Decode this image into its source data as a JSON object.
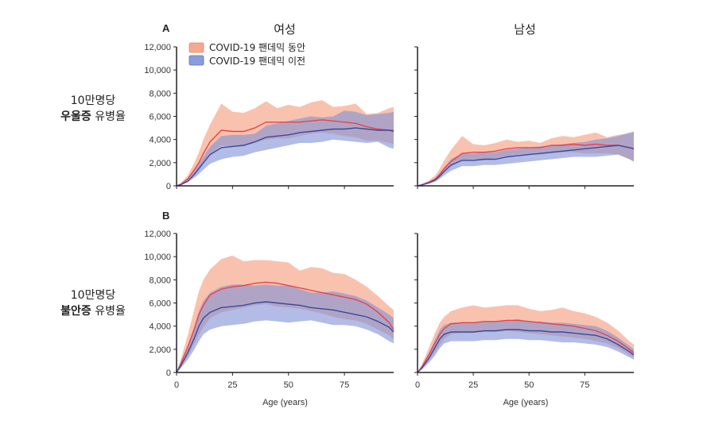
{
  "row_labels": [
    {
      "line1": "10만명당",
      "bold": "우울증",
      "rest": " 유병율"
    },
    {
      "line1": "10만명당",
      "bold": "불안증",
      "rest": " 유병율"
    }
  ],
  "columns": [
    "여성",
    "남성"
  ],
  "panel_letters": [
    "A",
    "B"
  ],
  "legend": [
    {
      "label": "COVID-19 팬데믹 동안",
      "color": "#f4a98f"
    },
    {
      "label": "COVID-19 팬데믹 이전",
      "color": "#8a9ddb"
    }
  ],
  "colors": {
    "during_band": "#f7a88c",
    "during_line": "#e8434a",
    "pre_band": "#7f8fd6",
    "pre_line": "#3b4a9a"
  },
  "chart_data": [
    {
      "type": "area",
      "title": "여성",
      "row": "A",
      "xlabel": "",
      "xlim": [
        0,
        97
      ],
      "ylim": [
        0,
        12000
      ],
      "yticks": [
        0,
        2000,
        4000,
        6000,
        8000,
        10000,
        12000
      ],
      "x": [
        0,
        2,
        5,
        8,
        10,
        12,
        15,
        20,
        25,
        30,
        35,
        40,
        45,
        50,
        55,
        60,
        65,
        70,
        75,
        80,
        85,
        90,
        95,
        97
      ],
      "series": [
        {
          "name": "COVID-19 팬데믹 동안",
          "values": [
            0,
            150,
            600,
            1400,
            2000,
            2800,
            3800,
            4800,
            4700,
            4700,
            5000,
            5500,
            5500,
            5500,
            5500,
            5600,
            5700,
            5600,
            5500,
            5400,
            5100,
            4900,
            4800,
            4800
          ],
          "lower": [
            0,
            100,
            400,
            900,
            1300,
            1900,
            2700,
            3500,
            3400,
            3400,
            3700,
            4000,
            4100,
            4100,
            4300,
            4500,
            4600,
            4500,
            4300,
            4200,
            3900,
            3900,
            3700,
            3600
          ],
          "upper": [
            0,
            250,
            900,
            2000,
            2900,
            4000,
            5300,
            7100,
            6400,
            6300,
            6700,
            7300,
            6700,
            7000,
            6800,
            7200,
            7400,
            6800,
            6900,
            7100,
            6200,
            6300,
            6700,
            6800
          ]
        },
        {
          "name": "COVID-19 팬데믹 이전",
          "values": [
            0,
            100,
            400,
            1000,
            1500,
            2000,
            2700,
            3300,
            3400,
            3500,
            3800,
            4200,
            4300,
            4400,
            4600,
            4700,
            4800,
            4900,
            4900,
            5000,
            4900,
            4800,
            4800,
            4700
          ],
          "lower": [
            0,
            80,
            300,
            700,
            1000,
            1400,
            1900,
            2300,
            2500,
            2600,
            2900,
            3100,
            3300,
            3500,
            3700,
            3700,
            3800,
            4000,
            3900,
            3800,
            3700,
            3800,
            3300,
            3200
          ],
          "upper": [
            0,
            150,
            550,
            1300,
            1900,
            2500,
            3400,
            4300,
            4400,
            4400,
            4500,
            5200,
            5400,
            5600,
            5800,
            6000,
            5900,
            6000,
            6500,
            6400,
            6100,
            6200,
            6300,
            6400
          ]
        }
      ]
    },
    {
      "type": "area",
      "title": "남성",
      "row": "A",
      "xlabel": "",
      "xlim": [
        0,
        97
      ],
      "ylim": [
        0,
        12000
      ],
      "x": [
        0,
        2,
        5,
        8,
        10,
        12,
        15,
        20,
        25,
        30,
        35,
        40,
        45,
        50,
        55,
        60,
        65,
        70,
        75,
        80,
        85,
        90,
        95,
        97
      ],
      "series": [
        {
          "name": "COVID-19 팬데믹 동안",
          "values": [
            0,
            100,
            300,
            600,
            1000,
            1500,
            2100,
            2800,
            2900,
            2900,
            3000,
            3200,
            3300,
            3300,
            3300,
            3500,
            3500,
            3600,
            3500,
            3600,
            3500,
            3500,
            3300,
            3200
          ],
          "lower": [
            0,
            60,
            200,
            450,
            750,
            1150,
            1650,
            2200,
            2300,
            2300,
            2400,
            2600,
            2700,
            2700,
            2700,
            2800,
            2900,
            2900,
            2800,
            2800,
            2800,
            2700,
            2300,
            2100
          ],
          "upper": [
            0,
            160,
            450,
            900,
            1500,
            2200,
            3100,
            4300,
            3600,
            3500,
            3700,
            4000,
            3800,
            3900,
            3700,
            4100,
            4300,
            4200,
            4400,
            4600,
            4200,
            4400,
            4500,
            4600
          ]
        },
        {
          "name": "COVID-19 팬데믹 이전",
          "values": [
            0,
            80,
            250,
            500,
            850,
            1250,
            1800,
            2200,
            2200,
            2300,
            2300,
            2500,
            2600,
            2700,
            2800,
            2900,
            3000,
            3100,
            3200,
            3300,
            3400,
            3500,
            3300,
            3200
          ],
          "lower": [
            0,
            50,
            170,
            350,
            600,
            900,
            1300,
            1700,
            1700,
            1800,
            1800,
            1900,
            2000,
            2100,
            2200,
            2300,
            2400,
            2500,
            2500,
            2500,
            2600,
            2700,
            2300,
            2100
          ],
          "upper": [
            0,
            110,
            330,
            650,
            1100,
            1600,
            2300,
            2800,
            2800,
            2900,
            2900,
            3100,
            3200,
            3300,
            3400,
            3500,
            3600,
            3700,
            3800,
            4000,
            4100,
            4300,
            4600,
            4700
          ]
        }
      ]
    },
    {
      "type": "area",
      "title": "",
      "row": "B",
      "xlabel": "Age (years)",
      "xlim": [
        0,
        97
      ],
      "ylim": [
        0,
        12000
      ],
      "xticks": [
        0,
        25,
        50,
        75
      ],
      "yticks": [
        0,
        2000,
        4000,
        6000,
        8000,
        10000,
        12000
      ],
      "x": [
        0,
        2,
        5,
        8,
        10,
        12,
        15,
        20,
        25,
        30,
        35,
        40,
        45,
        50,
        55,
        60,
        65,
        70,
        75,
        80,
        85,
        90,
        95,
        97
      ],
      "series": [
        {
          "name": "COVID-19 팬데믹 동안",
          "values": [
            0,
            800,
            2200,
            3800,
            5000,
            5800,
            6700,
            7200,
            7400,
            7500,
            7700,
            7800,
            7700,
            7500,
            7300,
            7100,
            6900,
            6700,
            6500,
            6300,
            5900,
            5200,
            4300,
            3700
          ],
          "lower": [
            0,
            500,
            1400,
            2500,
            3300,
            3900,
            4700,
            5200,
            5400,
            5600,
            5800,
            5900,
            5700,
            5600,
            5500,
            5300,
            5100,
            4800,
            4600,
            4500,
            4200,
            3700,
            3200,
            2900
          ],
          "upper": [
            0,
            1200,
            3200,
            5500,
            7000,
            8000,
            8900,
            9800,
            10100,
            9600,
            9700,
            9700,
            9600,
            9500,
            8800,
            9100,
            9000,
            8600,
            8500,
            8000,
            7400,
            6600,
            5700,
            5400
          ]
        },
        {
          "name": "COVID-19 팬데믹 이전",
          "values": [
            0,
            600,
            1700,
            3000,
            4000,
            4700,
            5200,
            5600,
            5700,
            5800,
            6000,
            6100,
            6000,
            5900,
            5800,
            5600,
            5500,
            5400,
            5200,
            5000,
            4800,
            4400,
            3900,
            3500
          ],
          "lower": [
            0,
            400,
            1100,
            2000,
            2700,
            3300,
            3700,
            4000,
            4100,
            4200,
            4400,
            4500,
            4400,
            4300,
            4400,
            4500,
            4300,
            4100,
            4100,
            4000,
            3700,
            3300,
            2700,
            2500
          ],
          "upper": [
            0,
            800,
            2300,
            4000,
            5300,
            6200,
            6900,
            7400,
            7600,
            7600,
            7500,
            7600,
            7500,
            7500,
            7200,
            6900,
            6900,
            7000,
            6800,
            6600,
            6200,
            5600,
            5000,
            4700
          ]
        }
      ]
    },
    {
      "type": "area",
      "title": "",
      "row": "B",
      "xlabel": "Age (years)",
      "xlim": [
        0,
        97
      ],
      "ylim": [
        0,
        12000
      ],
      "xticks": [
        0,
        25,
        50,
        75
      ],
      "x": [
        0,
        2,
        5,
        8,
        10,
        12,
        15,
        20,
        25,
        30,
        35,
        40,
        45,
        50,
        55,
        60,
        65,
        70,
        75,
        80,
        85,
        90,
        95,
        97
      ],
      "series": [
        {
          "name": "COVID-19 팬데믹 동안",
          "values": [
            0,
            500,
            1500,
            2600,
            3300,
            3800,
            4200,
            4300,
            4300,
            4400,
            4400,
            4500,
            4500,
            4400,
            4300,
            4200,
            4100,
            4000,
            3800,
            3600,
            3200,
            2700,
            2000,
            1700
          ],
          "lower": [
            0,
            300,
            1000,
            1800,
            2400,
            2900,
            3300,
            3400,
            3400,
            3500,
            3500,
            3600,
            3500,
            3400,
            3300,
            3200,
            3100,
            3000,
            2900,
            2700,
            2500,
            2100,
            1500,
            1300
          ],
          "upper": [
            0,
            700,
            2100,
            3500,
            4300,
            4800,
            5300,
            5600,
            5800,
            5600,
            5700,
            5800,
            5800,
            5500,
            5300,
            5400,
            5600,
            5300,
            5100,
            4800,
            4300,
            3600,
            2700,
            2400
          ]
        },
        {
          "name": "COVID-19 팬데믹 이전",
          "values": [
            0,
            400,
            1200,
            2200,
            2900,
            3300,
            3500,
            3500,
            3500,
            3600,
            3600,
            3700,
            3700,
            3600,
            3600,
            3500,
            3500,
            3400,
            3300,
            3200,
            2900,
            2400,
            1800,
            1500
          ],
          "lower": [
            0,
            250,
            800,
            1500,
            2100,
            2500,
            2700,
            2700,
            2700,
            2800,
            2800,
            2900,
            2900,
            2800,
            2800,
            2700,
            2600,
            2600,
            2500,
            2400,
            2200,
            1800,
            1300,
            1100
          ],
          "upper": [
            0,
            550,
            1600,
            2900,
            3700,
            4100,
            4300,
            4300,
            4300,
            4400,
            4400,
            4500,
            4600,
            4400,
            4400,
            4300,
            4300,
            4200,
            4100,
            4000,
            3600,
            3000,
            2300,
            2000
          ]
        }
      ]
    }
  ]
}
